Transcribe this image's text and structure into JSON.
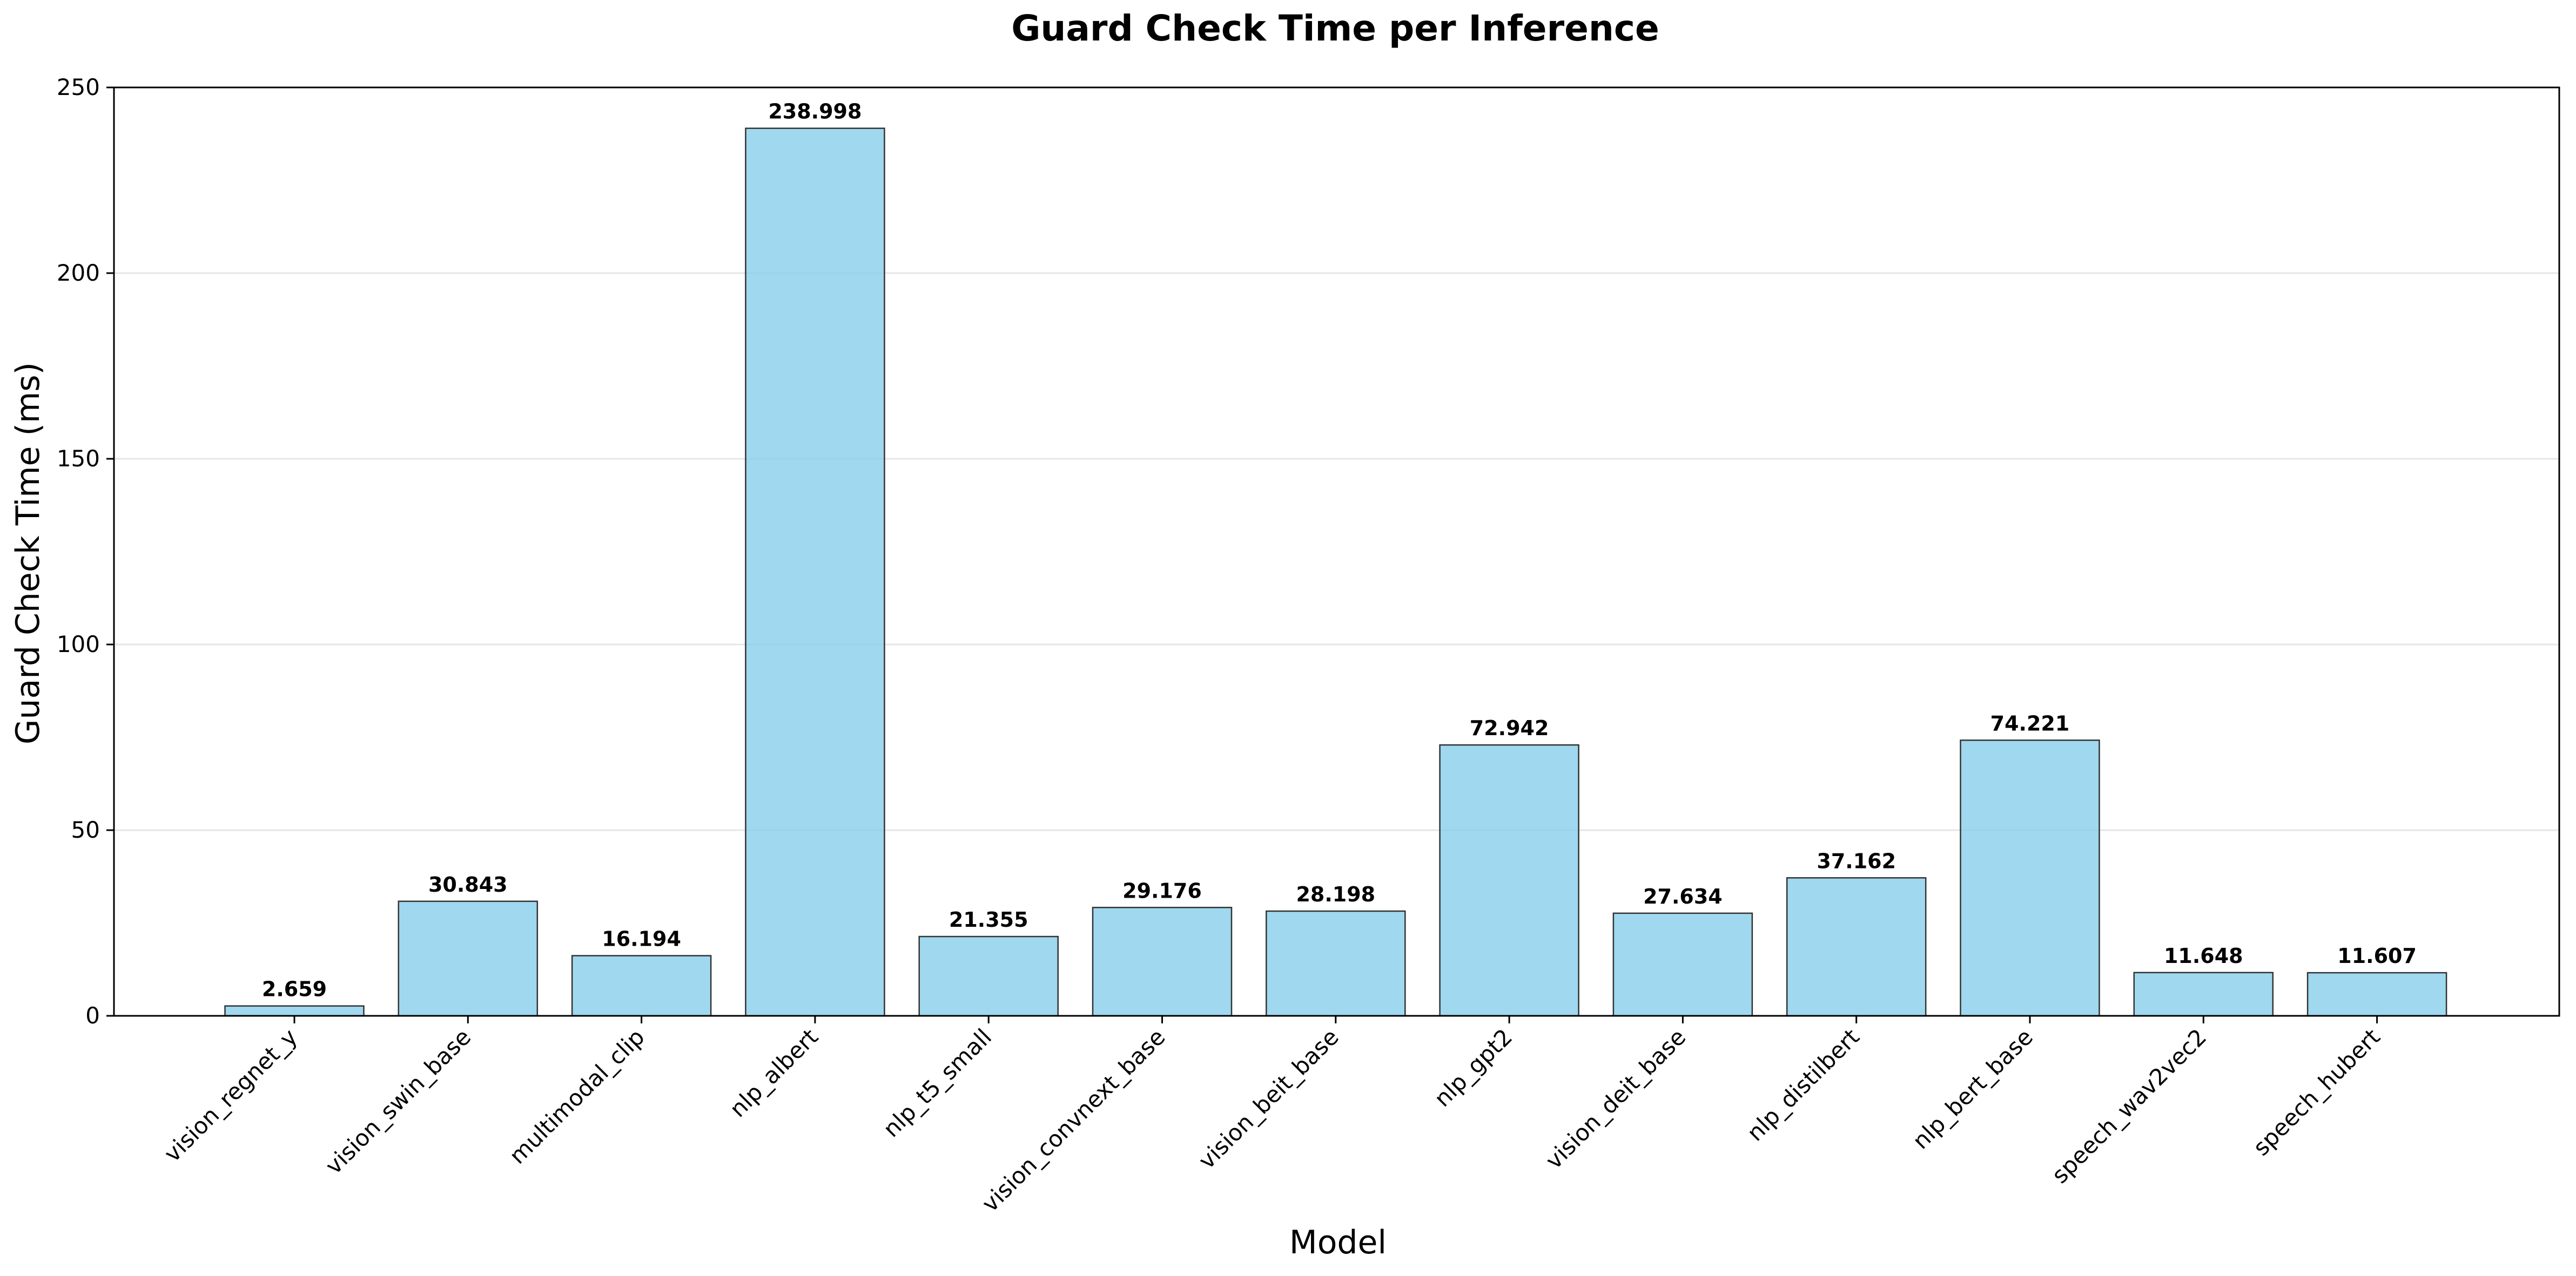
{
  "chart_data": {
    "type": "bar",
    "title": "Guard Check Time per Inference",
    "xlabel": "Model",
    "ylabel": "Guard Check Time (ms)",
    "categories": [
      "vision_regnet_y",
      "vision_swin_base",
      "multimodal_clip",
      "nlp_albert",
      "nlp_t5_small",
      "vision_convnext_base",
      "vision_beit_base",
      "nlp_gpt2",
      "vision_deit_base",
      "nlp_distilbert",
      "nlp_bert_base",
      "speech_wav2vec2",
      "speech_hubert"
    ],
    "values": [
      2.659,
      30.843,
      16.194,
      238.998,
      21.355,
      29.176,
      28.198,
      72.942,
      27.634,
      37.162,
      74.221,
      11.648,
      11.607
    ],
    "value_labels": [
      "2.659",
      "30.843",
      "16.194",
      "238.998",
      "21.355",
      "29.176",
      "28.198",
      "72.942",
      "27.634",
      "37.162",
      "74.221",
      "11.648",
      "11.607"
    ],
    "ylim": [
      0,
      250
    ],
    "yticks": [
      0,
      50,
      100,
      150,
      200,
      250
    ],
    "ytick_labels": [
      "0",
      "50",
      "100",
      "150",
      "200",
      "250"
    ],
    "grid": "horizontal",
    "colors": {
      "bar_fill": "#87ceeb",
      "bar_stroke": "#333333",
      "grid": "#e6e6e6",
      "axis": "#000000"
    }
  }
}
